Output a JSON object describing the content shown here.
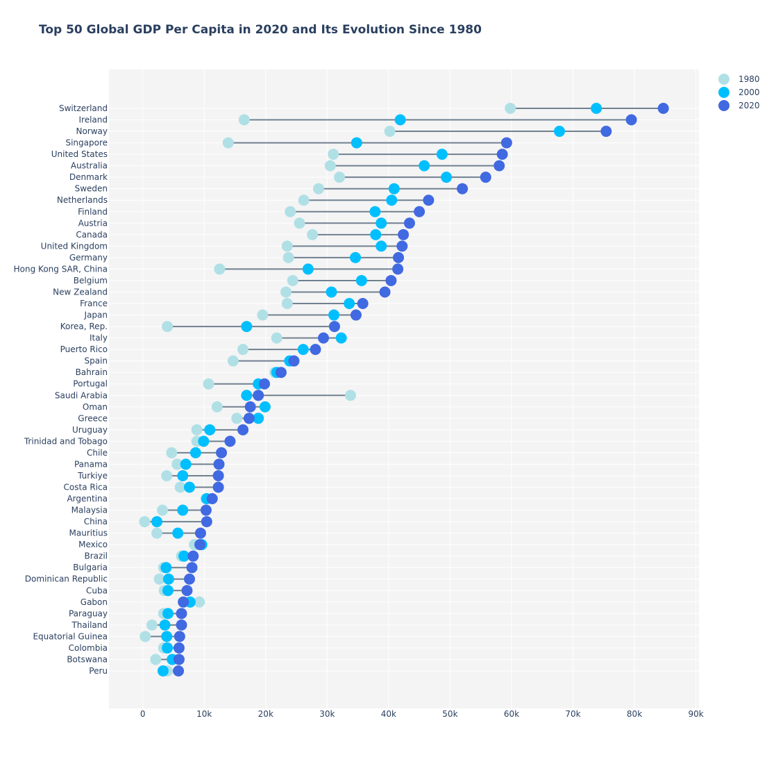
{
  "chart_data": {
    "type": "scatter",
    "title": "Top 50 Global GDP Per Capita in 2020 and Its Evolution Since 1980",
    "xlabel": "",
    "ylabel": "",
    "xlim": [
      -5500,
      90500
    ],
    "x_ticks": [
      0,
      10000,
      20000,
      30000,
      40000,
      50000,
      60000,
      70000,
      80000,
      90000
    ],
    "x_tick_labels": [
      "0",
      "10k",
      "20k",
      "30k",
      "40k",
      "50k",
      "60k",
      "70k",
      "80k",
      "90k"
    ],
    "grid": true,
    "legend_position": "top-right",
    "categories": [
      "Switzerland",
      "Ireland",
      "Norway",
      "Singapore",
      "United States",
      "Australia",
      "Denmark",
      "Sweden",
      "Netherlands",
      "Finland",
      "Austria",
      "Canada",
      "United Kingdom",
      "Germany",
      "Hong Kong SAR, China",
      "Belgium",
      "New Zealand",
      "France",
      "Japan",
      "Korea, Rep.",
      "Italy",
      "Puerto Rico",
      "Spain",
      "Bahrain",
      "Portugal",
      "Saudi Arabia",
      "Oman",
      "Greece",
      "Uruguay",
      "Trinidad and Tobago",
      "Chile",
      "Panama",
      "Turkiye",
      "Costa Rica",
      "Argentina",
      "Malaysia",
      "China",
      "Mauritius",
      "Mexico",
      "Brazil",
      "Bulgaria",
      "Dominican Republic",
      "Cuba",
      "Gabon",
      "Paraguay",
      "Thailand",
      "Equatorial Guinea",
      "Colombia",
      "Botswana",
      "Peru"
    ],
    "series": [
      {
        "name": "1980",
        "color": "#b0e0e6",
        "values": [
          59800,
          16500,
          40200,
          13900,
          31000,
          30500,
          32000,
          28600,
          26200,
          24000,
          25500,
          27600,
          23500,
          23700,
          12500,
          24400,
          23300,
          23500,
          19500,
          4000,
          21800,
          16300,
          14700,
          21500,
          10700,
          33800,
          12100,
          15300,
          8800,
          8800,
          4700,
          5600,
          3900,
          6100,
          10300,
          3200,
          300,
          2300,
          8400,
          6300,
          3400,
          2700,
          3500,
          9200,
          3400,
          1500,
          400,
          3400,
          2100,
          4000
        ]
      },
      {
        "name": "2000",
        "color": "#00bfff",
        "values": [
          73800,
          41900,
          67800,
          34800,
          48700,
          45800,
          49400,
          40900,
          40500,
          37800,
          38800,
          37900,
          38800,
          34600,
          26900,
          35600,
          30700,
          33600,
          31100,
          16900,
          32300,
          26100,
          23900,
          21800,
          18800,
          16900,
          19900,
          18800,
          10900,
          9900,
          8600,
          7000,
          6500,
          7600,
          10400,
          6500,
          2300,
          5700,
          9600,
          6700,
          3800,
          4200,
          4100,
          7700,
          4100,
          3600,
          3900,
          4000,
          4800,
          3300
        ]
      },
      {
        "name": "2020",
        "color": "#4169e1",
        "values": [
          84700,
          79500,
          75400,
          59200,
          58500,
          58000,
          55800,
          52000,
          46500,
          45000,
          43400,
          42400,
          42200,
          41600,
          41500,
          40400,
          39400,
          35800,
          34700,
          31200,
          29400,
          28100,
          24600,
          22500,
          19800,
          18800,
          17500,
          17300,
          16300,
          14200,
          12800,
          12400,
          12300,
          12300,
          11300,
          10300,
          10400,
          9400,
          9300,
          8200,
          8000,
          7600,
          7200,
          6600,
          6300,
          6300,
          6000,
          5900,
          5900,
          5800
        ]
      }
    ]
  }
}
